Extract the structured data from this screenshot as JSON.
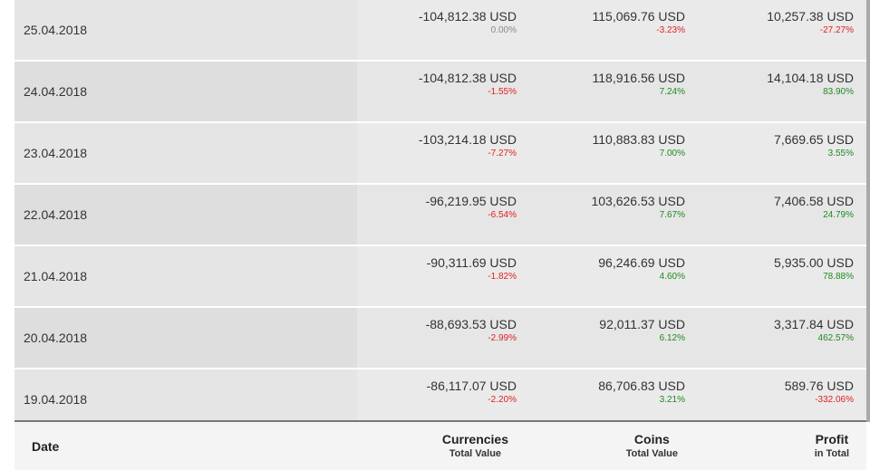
{
  "rows": [
    {
      "date": "25.04.2018",
      "currencies": "-104,812.38 USD",
      "currencies_pct": "0.00%",
      "currencies_trend": "neu",
      "coins": "115,069.76 USD",
      "coins_pct": "-3.23%",
      "coins_trend": "neg",
      "profit": "10,257.38 USD",
      "profit_pct": "-27.27%",
      "profit_trend": "neg"
    },
    {
      "date": "24.04.2018",
      "currencies": "-104,812.38 USD",
      "currencies_pct": "-1.55%",
      "currencies_trend": "neg",
      "coins": "118,916.56 USD",
      "coins_pct": "7.24%",
      "coins_trend": "pos",
      "profit": "14,104.18 USD",
      "profit_pct": "83.90%",
      "profit_trend": "pos"
    },
    {
      "date": "23.04.2018",
      "currencies": "-103,214.18 USD",
      "currencies_pct": "-7.27%",
      "currencies_trend": "neg",
      "coins": "110,883.83 USD",
      "coins_pct": "7.00%",
      "coins_trend": "pos",
      "profit": "7,669.65 USD",
      "profit_pct": "3.55%",
      "profit_trend": "pos"
    },
    {
      "date": "22.04.2018",
      "currencies": "-96,219.95 USD",
      "currencies_pct": "-6.54%",
      "currencies_trend": "neg",
      "coins": "103,626.53 USD",
      "coins_pct": "7.67%",
      "coins_trend": "pos",
      "profit": "7,406.58 USD",
      "profit_pct": "24.79%",
      "profit_trend": "pos"
    },
    {
      "date": "21.04.2018",
      "currencies": "-90,311.69 USD",
      "currencies_pct": "-1.82%",
      "currencies_trend": "neg",
      "coins": "96,246.69 USD",
      "coins_pct": "4.60%",
      "coins_trend": "pos",
      "profit": "5,935.00 USD",
      "profit_pct": "78.88%",
      "profit_trend": "pos"
    },
    {
      "date": "20.04.2018",
      "currencies": "-88,693.53 USD",
      "currencies_pct": "-2.99%",
      "currencies_trend": "neg",
      "coins": "92,011.37 USD",
      "coins_pct": "6.12%",
      "coins_trend": "pos",
      "profit": "3,317.84 USD",
      "profit_pct": "462.57%",
      "profit_trend": "pos"
    },
    {
      "date": "19.04.2018",
      "currencies": "-86,117.07 USD",
      "currencies_pct": "-2.20%",
      "currencies_trend": "neg",
      "coins": "86,706.83 USD",
      "coins_pct": "3.21%",
      "coins_trend": "pos",
      "profit": "589.76 USD",
      "profit_pct": "-332.06%",
      "profit_trend": "neg"
    }
  ],
  "footer": {
    "date_label": "Date",
    "currencies_label": "Currencies",
    "currencies_sub": "Total Value",
    "coins_label": "Coins",
    "coins_sub": "Total Value",
    "profit_label": "Profit",
    "profit_sub": "in Total"
  },
  "colors": {
    "positive": "#1e8a1e",
    "negative": "#e02020",
    "neutral": "#888888"
  }
}
